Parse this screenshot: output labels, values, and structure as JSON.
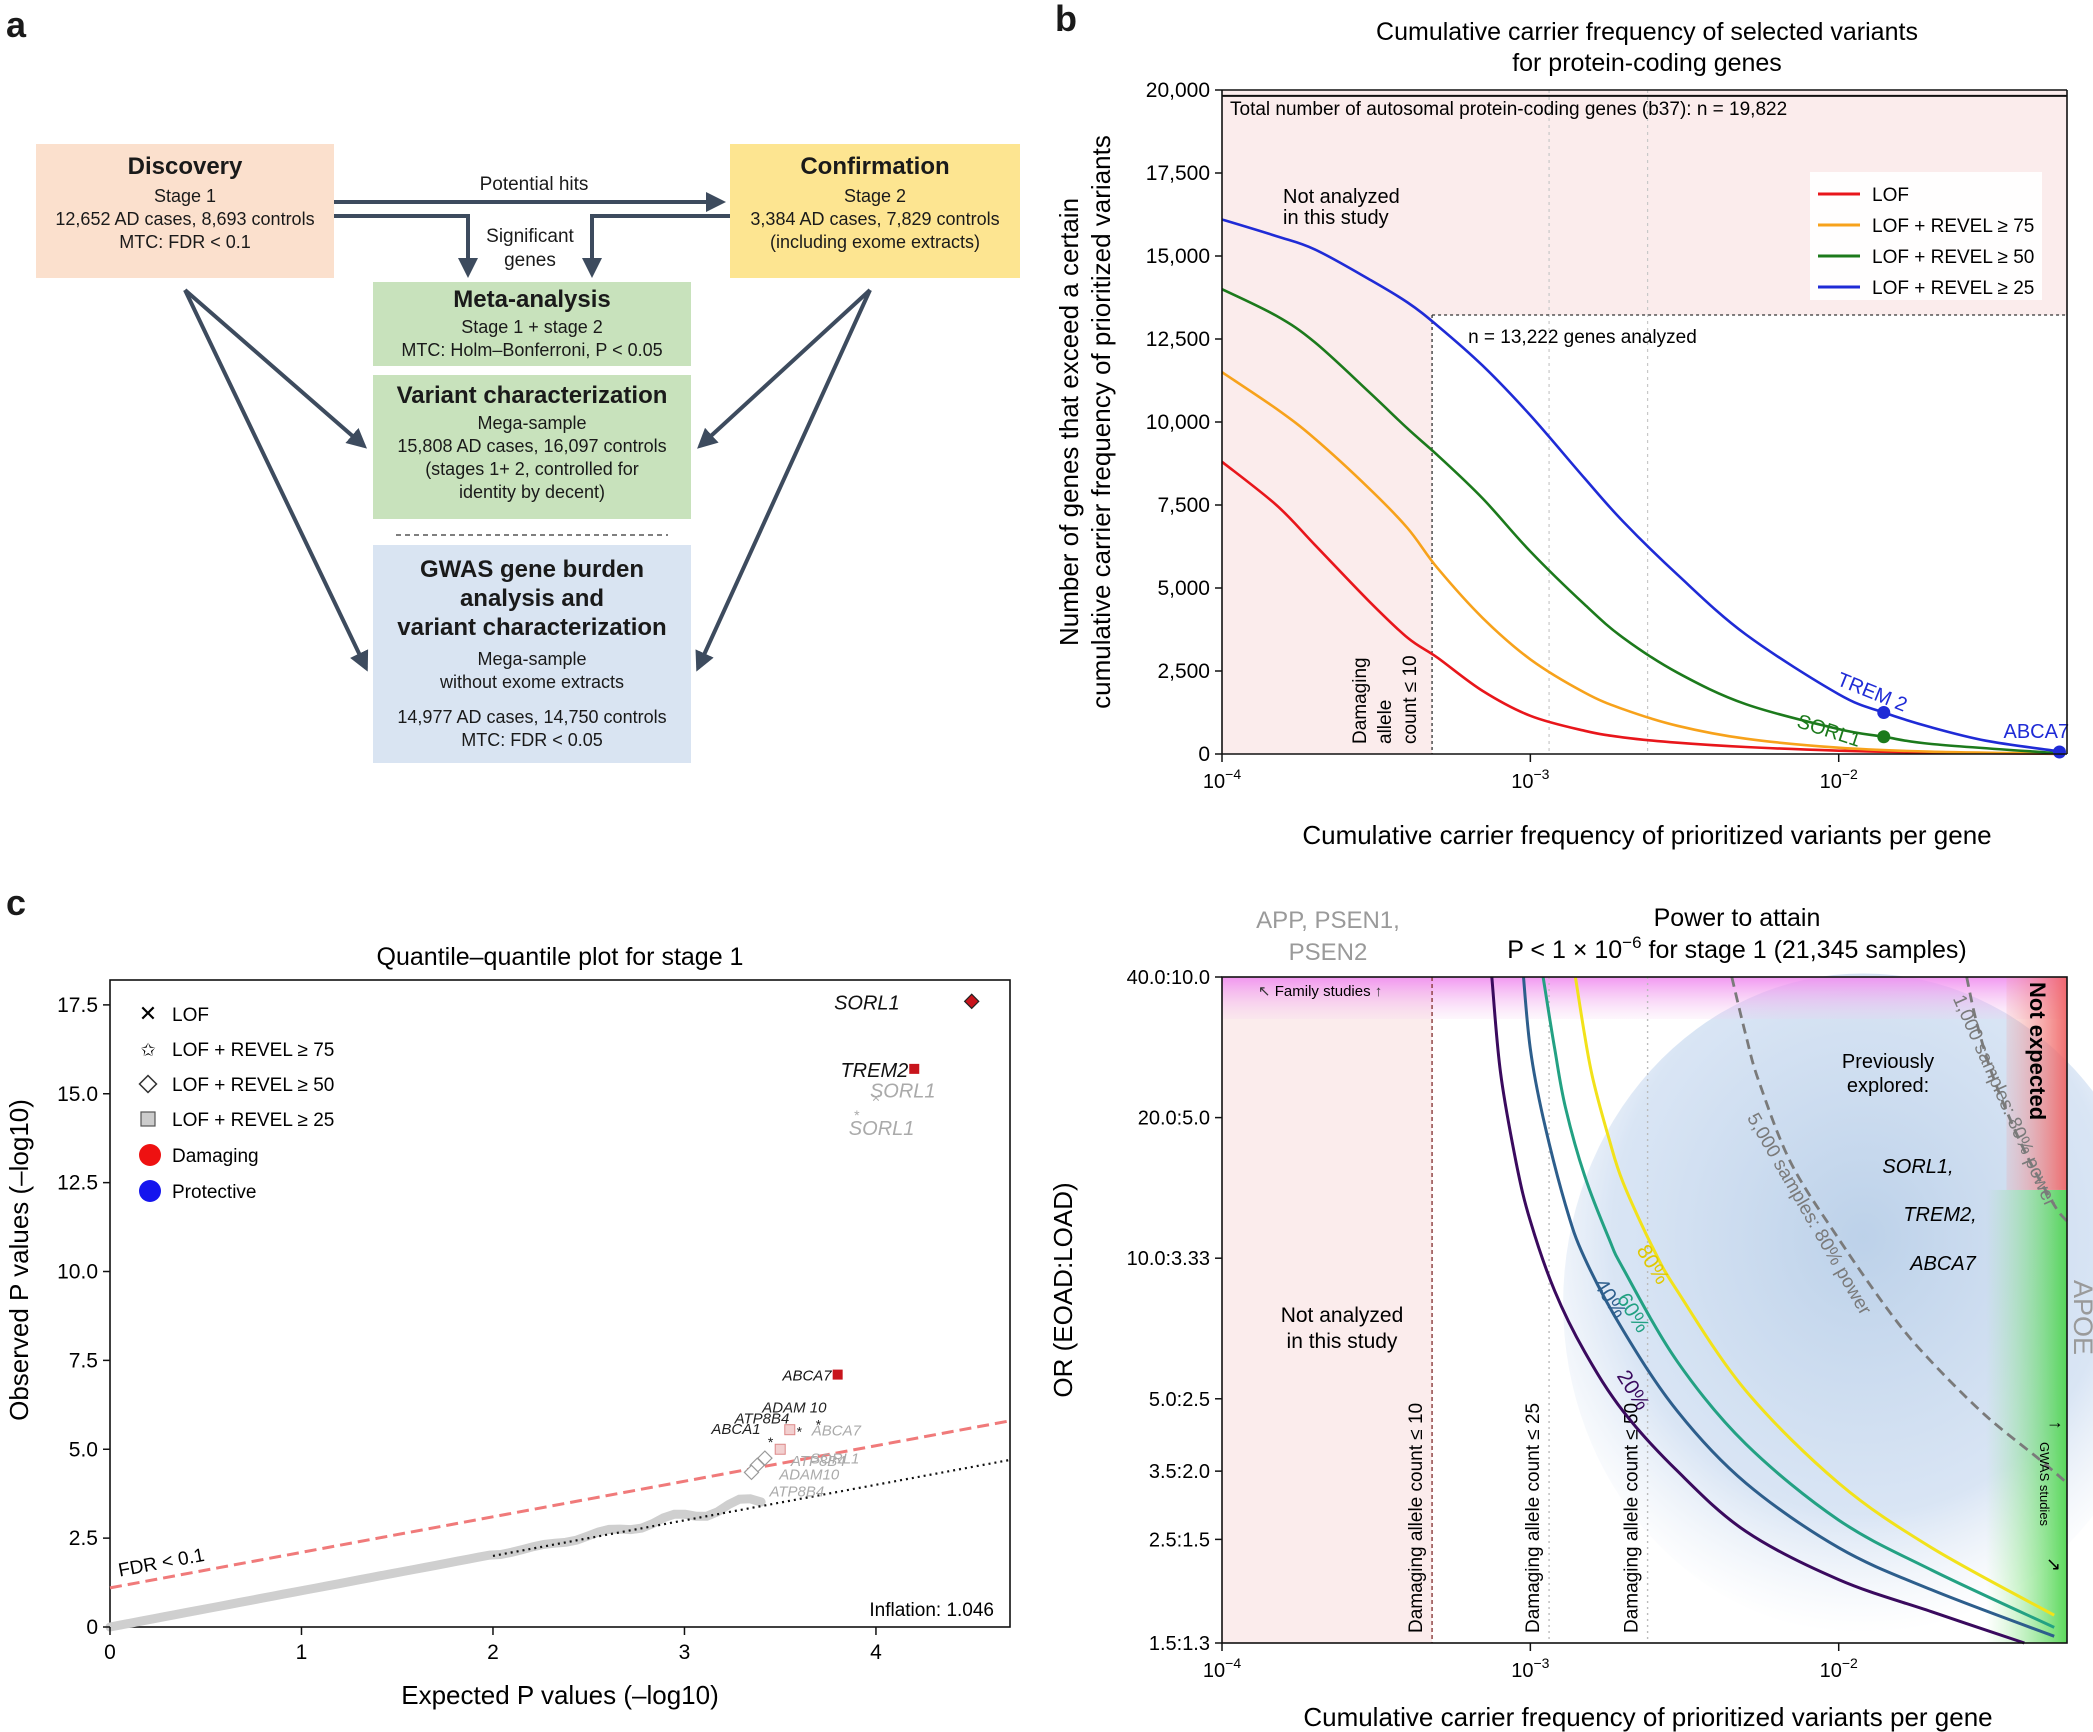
{
  "panel_letters": {
    "a": "a",
    "b": "b",
    "c": "c"
  },
  "flowchart": {
    "discovery": {
      "title": "Discovery",
      "lines": [
        "Stage 1",
        "12,652 AD cases, 8,693 controls",
        "MTC: FDR < 0.1"
      ]
    },
    "confirmation": {
      "title": "Confirmation",
      "lines": [
        "Stage 2",
        "3,384 AD cases, 7,829 controls",
        "(including exome extracts)"
      ]
    },
    "meta": {
      "title": "Meta-analysis",
      "lines": [
        "Stage 1 + stage 2",
        "MTC: Holm–Bonferroni, P < 0.05"
      ]
    },
    "variant": {
      "title": "Variant characterization",
      "lines": [
        "Mega-sample",
        "15,808 AD cases, 16,097 controls",
        "(stages 1+ 2, controlled for",
        "identity by decent)"
      ]
    },
    "gwas": {
      "title_lines": [
        "GWAS gene burden",
        "analysis and",
        "variant characterization"
      ],
      "lines": [
        "Mega-sample",
        "without exome extracts",
        "14,977 AD cases, 14,750 controls",
        "MTC: FDR < 0.05"
      ]
    },
    "arrow_potential_hits": "Potential hits",
    "arrow_significant": [
      "Significant",
      "genes"
    ],
    "colors": {
      "discovery": "#fbe0cd",
      "confirmation": "#fde591",
      "meta": "#c8e2bc",
      "variant": "#c8e2bc",
      "gwas": "#d9e4f2",
      "arrow": "#3d4b5e"
    }
  },
  "chart_data": [
    {
      "id": "b",
      "type": "line",
      "title": [
        "Cumulative carrier frequency of selected variants",
        "for protein-coding genes"
      ],
      "xlabel": "Cumulative carrier frequency of prioritized variants per gene",
      "ylabel": [
        "Number of genes that exceed a certain",
        "cumulative carrier frequency of prioritized variants"
      ],
      "xscale": "log",
      "xlim": [
        0.0001,
        0.055
      ],
      "ylim": [
        0,
        20000
      ],
      "xticks": [
        {
          "v": 0.0001,
          "b": "10",
          "e": "−4"
        },
        {
          "v": 0.001,
          "b": "10",
          "e": "−3"
        },
        {
          "v": 0.01,
          "b": "10",
          "e": "−2"
        }
      ],
      "yticks": [
        {
          "v": 0,
          "label": "0"
        },
        {
          "v": 2500,
          "label": "2,500"
        },
        {
          "v": 5000,
          "label": "5,000"
        },
        {
          "v": 7500,
          "label": "7,500"
        },
        {
          "v": 10000,
          "label": "10,000"
        },
        {
          "v": 12500,
          "label": "12,500"
        },
        {
          "v": 15000,
          "label": "15,000"
        },
        {
          "v": 17500,
          "label": "17,500"
        },
        {
          "v": 20000,
          "label": "20,000"
        }
      ],
      "series": [
        {
          "name": "LOF",
          "color": "#e8161b",
          "x": [
            0.0001,
            0.00015,
            0.0002,
            0.0003,
            0.0004,
            0.0005,
            0.0007,
            0.001,
            0.0015,
            0.002,
            0.003,
            0.005,
            0.01,
            0.02,
            0.05
          ],
          "y": [
            8800,
            7500,
            6300,
            4600,
            3500,
            2900,
            1900,
            1150,
            700,
            500,
            340,
            210,
            100,
            40,
            5
          ]
        },
        {
          "name": "LOF + REVEL ≥ 75",
          "color": "#f7a21b",
          "x": [
            0.0001,
            0.00015,
            0.0002,
            0.0003,
            0.0004,
            0.0005,
            0.0007,
            0.001,
            0.0015,
            0.002,
            0.003,
            0.005,
            0.01,
            0.02,
            0.05
          ],
          "y": [
            11500,
            10400,
            9500,
            8000,
            6800,
            5600,
            4100,
            2850,
            1850,
            1350,
            850,
            460,
            190,
            70,
            10
          ]
        },
        {
          "name": "LOF + REVEL ≥ 50",
          "color": "#1c7a1c",
          "x": [
            0.0001,
            0.00015,
            0.0002,
            0.0003,
            0.0004,
            0.0005,
            0.0007,
            0.001,
            0.0015,
            0.002,
            0.003,
            0.005,
            0.01,
            0.014,
            0.02,
            0.05
          ],
          "y": [
            14000,
            13200,
            12400,
            10900,
            9800,
            9000,
            7700,
            6100,
            4500,
            3500,
            2450,
            1500,
            750,
            520,
            300,
            30
          ]
        },
        {
          "name": "LOF + REVEL ≥ 25",
          "color": "#1f2bd6",
          "x": [
            0.0001,
            0.00015,
            0.0002,
            0.0003,
            0.0004,
            0.0005,
            0.0007,
            0.001,
            0.0015,
            0.002,
            0.003,
            0.005,
            0.01,
            0.014,
            0.02,
            0.03,
            0.05
          ],
          "y": [
            16100,
            15600,
            15200,
            14300,
            13600,
            12900,
            11700,
            10200,
            8300,
            7000,
            5400,
            3600,
            1800,
            1250,
            800,
            400,
            100
          ]
        }
      ],
      "points": [
        {
          "label": "TREM 2",
          "x": 0.014,
          "y": 1250,
          "color": "#1f2bd6"
        },
        {
          "label": "SORL1",
          "x": 0.014,
          "y": 520,
          "color": "#1c7a1c"
        },
        {
          "label": "ABCA7",
          "x": 0.052,
          "y": 60,
          "color": "#1f2bd6"
        }
      ],
      "total_genes": {
        "value": 19822,
        "label": "Total number of autosomal protein-coding genes (b37): n = 19,822"
      },
      "genes_analyzed": {
        "value": 13222,
        "label": "n = 13,222 genes analyzed"
      },
      "threshold": {
        "value": 0.00048,
        "label": [
          "Damaging",
          "allele",
          "count ≤ 10"
        ]
      },
      "dotted_refs": [
        0.00115,
        0.0024
      ],
      "not_analyzed": [
        "Not analyzed",
        "in this study"
      ]
    },
    {
      "id": "c",
      "type": "scatter",
      "title": "Quantile–quantile plot for stage 1",
      "xlabel": "Expected P values (–log10)",
      "ylabel": "Observed P values (–log10)",
      "xlim": [
        0,
        4.7
      ],
      "ylim": [
        0,
        18.2
      ],
      "xticks": [
        0,
        1,
        2,
        3,
        4
      ],
      "yticks": [
        {
          "v": 0,
          "label": "0"
        },
        {
          "v": 2.5,
          "label": "2.5"
        },
        {
          "v": 5,
          "label": "5.0"
        },
        {
          "v": 7.5,
          "label": "7.5"
        },
        {
          "v": 10,
          "label": "10.0"
        },
        {
          "v": 12.5,
          "label": "12.5"
        },
        {
          "v": 15,
          "label": "15.0"
        },
        {
          "v": 17.5,
          "label": "17.5"
        }
      ],
      "legend": [
        {
          "marker": "x",
          "label": "LOF"
        },
        {
          "marker": "star",
          "label": "LOF + REVEL ≥ 75"
        },
        {
          "marker": "diamond",
          "label": "LOF + REVEL ≥ 50"
        },
        {
          "marker": "square",
          "label": "LOF + REVEL ≥ 25"
        },
        {
          "marker": "circle-red",
          "label": "Damaging"
        },
        {
          "marker": "circle-blue",
          "label": "Protective"
        }
      ],
      "null_line": {
        "x": [
          0,
          4.7
        ],
        "y": [
          0,
          4.7
        ]
      },
      "fdr_line": {
        "x": [
          0,
          4.7
        ],
        "y": [
          1.1,
          5.8
        ],
        "label": "FDR < 0.1"
      },
      "points": [
        {
          "label": "SORL1",
          "x": 4.5,
          "y": 17.6,
          "marker": "diamond",
          "color": "#c8141c"
        },
        {
          "label": "TREM2",
          "x": 4.2,
          "y": 15.7,
          "marker": "square",
          "color": "#c8141c"
        },
        {
          "label": "SORL1",
          "x": 4.0,
          "y": 14.9,
          "marker": "x",
          "color": "#aaaaaa"
        },
        {
          "label": "SORL1",
          "x": 3.9,
          "y": 14.4,
          "marker": "star",
          "color": "#aaaaaa"
        },
        {
          "label": "ABCA7",
          "x": 3.8,
          "y": 7.1,
          "marker": "square",
          "color": "#c8141c"
        },
        {
          "label": "ADAM 10",
          "x": 3.7,
          "y": 5.7,
          "marker": "star",
          "color": "#222222"
        },
        {
          "label": "ATP8B4",
          "x": 3.6,
          "y": 5.5,
          "marker": "star",
          "color": "#222222"
        },
        {
          "label": "ABCA1",
          "x": 3.45,
          "y": 5.2,
          "marker": "star",
          "color": "#222222"
        },
        {
          "label": "ABCA7",
          "x": 3.55,
          "y": 5.55,
          "marker": "square",
          "color": "#aaaaaa"
        },
        {
          "label": "SORL1",
          "x": 3.5,
          "y": 5.0,
          "marker": "square",
          "color": "#aaaaaa"
        },
        {
          "label": "ATP8B4",
          "x": 3.42,
          "y": 4.75,
          "marker": "diamond",
          "color": "#aaaaaa"
        },
        {
          "label": "ADAM10",
          "x": 3.38,
          "y": 4.55,
          "marker": "diamond",
          "color": "#aaaaaa"
        },
        {
          "label": "ATP8B4",
          "x": 3.35,
          "y": 4.35,
          "marker": "diamond",
          "color": "#aaaaaa"
        }
      ],
      "inflation": "Inflation: 1.046"
    },
    {
      "id": "d",
      "type": "line",
      "title": [
        "Power to attain",
        "P < 1 × 10",
        "−6",
        " for stage 1 (21,345 samples)"
      ],
      "xlabel": "Cumulative carrier frequency of prioritized variants per gene",
      "ylabel": "OR (EOAD:LOAD)",
      "xscale": "log",
      "yscale": "log",
      "xlim": [
        0.0001,
        0.055
      ],
      "ylim": [
        1.5,
        40
      ],
      "xticks": [
        {
          "v": 0.0001,
          "b": "10",
          "e": "−4"
        },
        {
          "v": 0.001,
          "b": "10",
          "e": "−3"
        },
        {
          "v": 0.01,
          "b": "10",
          "e": "−2"
        }
      ],
      "yticks": [
        {
          "v": 1.5,
          "label": "1.5:1.3"
        },
        {
          "v": 2.5,
          "label": "2.5:1.5"
        },
        {
          "v": 3.5,
          "label": "3.5:2.0"
        },
        {
          "v": 5,
          "label": "5.0:2.5"
        },
        {
          "v": 10,
          "label": "10.0:3.33"
        },
        {
          "v": 20,
          "label": "20.0:5.0"
        },
        {
          "v": 40,
          "label": "40.0:10.0"
        }
      ],
      "series": [
        {
          "name": "20%",
          "color": "#3a0a5e",
          "x": [
            0.00075,
            0.0008,
            0.0009,
            0.001,
            0.0012,
            0.0015,
            0.002,
            0.003,
            0.005,
            0.01,
            0.02,
            0.04
          ],
          "y": [
            40,
            25,
            16,
            12,
            8.5,
            6.3,
            4.7,
            3.5,
            2.6,
            2.05,
            1.75,
            1.5
          ]
        },
        {
          "name": "40%",
          "color": "#2d5e8c",
          "x": [
            0.00095,
            0.001,
            0.0011,
            0.0013,
            0.0015,
            0.002,
            0.003,
            0.005,
            0.01,
            0.02,
            0.05
          ],
          "y": [
            40,
            28,
            20,
            13,
            10,
            7,
            4.7,
            3.3,
            2.4,
            1.95,
            1.55
          ]
        },
        {
          "name": "60%",
          "color": "#23a183",
          "x": [
            0.0011,
            0.0012,
            0.0013,
            0.0015,
            0.0018,
            0.002,
            0.003,
            0.005,
            0.01,
            0.02,
            0.05
          ],
          "y": [
            40,
            28,
            21,
            15,
            11,
            9.5,
            6,
            4,
            2.75,
            2.15,
            1.62
          ]
        },
        {
          "name": "80%",
          "color": "#f2e21a",
          "x": [
            0.0014,
            0.0015,
            0.0016,
            0.0018,
            0.002,
            0.0025,
            0.003,
            0.005,
            0.01,
            0.02,
            0.05
          ],
          "y": [
            40,
            30,
            24,
            18,
            14.5,
            10.5,
            8.5,
            5.2,
            3.3,
            2.4,
            1.72
          ]
        }
      ],
      "sample_curves": [
        {
          "name": "5,000 samples: 80% power",
          "x": [
            0.0045,
            0.005,
            0.0055,
            0.007,
            0.01,
            0.015,
            0.02,
            0.03,
            0.045,
            0.055
          ],
          "y": [
            40,
            30,
            24,
            16,
            11,
            7.5,
            6,
            4.6,
            3.7,
            3.3
          ]
        },
        {
          "name": "1,000 samples: 80% power",
          "x": [
            0.026,
            0.028,
            0.032,
            0.04,
            0.05,
            0.055
          ],
          "y": [
            40,
            32,
            24,
            17,
            13,
            12
          ]
        }
      ],
      "threshold_lines": [
        {
          "x": 0.00048,
          "label": "Damaging allele count ≤ 10",
          "style": "dashed"
        },
        {
          "x": 0.00115,
          "label": "Damaging allele count ≤ 25",
          "style": "dotted"
        },
        {
          "x": 0.0024,
          "label": "Damaging allele count ≤ 50",
          "style": "dotted"
        }
      ],
      "annotations": {
        "app": [
          "APP, PSEN1,",
          "PSEN2"
        ],
        "family": "Family studies",
        "not_analyzed": [
          "Not analyzed",
          "in this study"
        ],
        "previously": [
          "Previously",
          "explored:"
        ],
        "genes": [
          "SORL1,",
          "TREM2,",
          "ABCA7"
        ],
        "not_expected": "Not expected",
        "apoe": "APOE",
        "gwas": "GWAS studies"
      }
    }
  ]
}
